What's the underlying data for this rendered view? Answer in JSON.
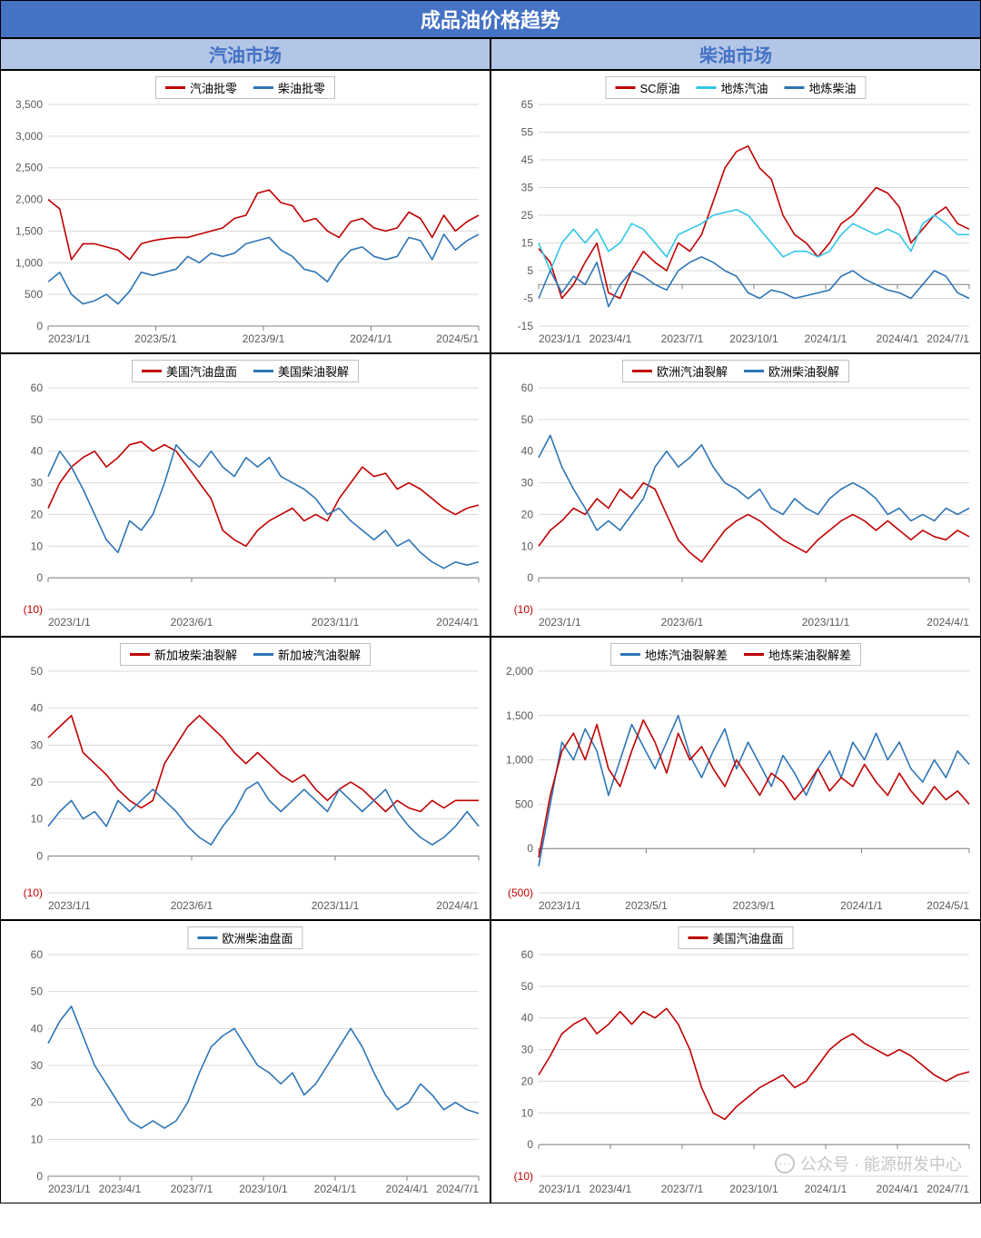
{
  "title": "成品油价格趋势",
  "sub_headers": [
    "汽油市场",
    "柴油市场"
  ],
  "watermark": "公众号 · 能源研发中心",
  "colors": {
    "red": "#c00000",
    "blue": "#2e75b6",
    "cyan": "#31c5e8",
    "grid": "#d9d9d9",
    "axis": "#808080",
    "text": "#595959",
    "neg": "#c00000"
  },
  "line_width": 1.6,
  "charts": [
    {
      "id": "c1",
      "legend": [
        {
          "label": "汽油批零",
          "color": "#c00000"
        },
        {
          "label": "柴油批零",
          "color": "#2e75b6"
        }
      ],
      "y": {
        "min": 0,
        "max": 3500,
        "step": 500,
        "neg_format": false
      },
      "x_labels": [
        "2023/1/1",
        "2023/5/1",
        "2023/9/1",
        "2024/1/1",
        "2024/5/1"
      ],
      "series": [
        {
          "color": "#c00000",
          "data": [
            2000,
            1850,
            1050,
            1300,
            1300,
            1250,
            1200,
            1050,
            1300,
            1350,
            1380,
            1400,
            1400,
            1450,
            1500,
            1550,
            1700,
            1750,
            2100,
            2150,
            1950,
            1900,
            1650,
            1700,
            1500,
            1400,
            1650,
            1700,
            1550,
            1500,
            1550,
            1800,
            1700,
            1400,
            1750,
            1500,
            1650,
            1750
          ]
        },
        {
          "color": "#2e75b6",
          "data": [
            700,
            850,
            500,
            350,
            400,
            500,
            350,
            550,
            850,
            800,
            850,
            900,
            1100,
            1000,
            1150,
            1100,
            1150,
            1300,
            1350,
            1400,
            1200,
            1100,
            900,
            850,
            700,
            1000,
            1200,
            1250,
            1100,
            1050,
            1100,
            1400,
            1350,
            1050,
            1450,
            1200,
            1350,
            1450
          ]
        }
      ]
    },
    {
      "id": "c2",
      "legend": [
        {
          "label": "SC原油",
          "color": "#c00000"
        },
        {
          "label": "地炼汽油",
          "color": "#31c5e8"
        },
        {
          "label": "地炼柴油",
          "color": "#2e75b6"
        }
      ],
      "y": {
        "min": -15,
        "max": 65,
        "step": 10,
        "neg_format": false
      },
      "x_labels": [
        "2023/1/1",
        "2023/4/1",
        "2023/7/1",
        "2023/10/1",
        "2024/1/1",
        "2024/4/1",
        "2024/7/1"
      ],
      "series": [
        {
          "color": "#c00000",
          "data": [
            13,
            8,
            -5,
            0,
            8,
            15,
            -3,
            -5,
            5,
            12,
            8,
            5,
            15,
            12,
            18,
            30,
            42,
            48,
            50,
            42,
            38,
            25,
            18,
            15,
            10,
            15,
            22,
            25,
            30,
            35,
            33,
            28,
            15,
            20,
            25,
            28,
            22,
            20
          ]
        },
        {
          "color": "#31c5e8",
          "data": [
            15,
            5,
            15,
            20,
            15,
            20,
            12,
            15,
            22,
            20,
            15,
            10,
            18,
            20,
            22,
            25,
            26,
            27,
            25,
            20,
            15,
            10,
            12,
            12,
            10,
            12,
            18,
            22,
            20,
            18,
            20,
            18,
            12,
            22,
            25,
            22,
            18,
            18
          ]
        },
        {
          "color": "#2e75b6",
          "data": [
            -5,
            5,
            -3,
            3,
            0,
            8,
            -8,
            0,
            5,
            3,
            0,
            -2,
            5,
            8,
            10,
            8,
            5,
            3,
            -3,
            -5,
            -2,
            -3,
            -5,
            -4,
            -3,
            -2,
            3,
            5,
            2,
            0,
            -2,
            -3,
            -5,
            0,
            5,
            3,
            -3,
            -5
          ]
        }
      ]
    },
    {
      "id": "c3",
      "legend": [
        {
          "label": "美国汽油盘面",
          "color": "#c00000"
        },
        {
          "label": "美国柴油裂解",
          "color": "#2e75b6"
        }
      ],
      "y": {
        "min": -10,
        "max": 60,
        "step": 10,
        "neg_format": true
      },
      "x_labels": [
        "2023/1/1",
        "2023/6/1",
        "2023/11/1",
        "2024/4/1"
      ],
      "series": [
        {
          "color": "#c00000",
          "data": [
            22,
            30,
            35,
            38,
            40,
            35,
            38,
            42,
            43,
            40,
            42,
            40,
            35,
            30,
            25,
            15,
            12,
            10,
            15,
            18,
            20,
            22,
            18,
            20,
            18,
            25,
            30,
            35,
            32,
            33,
            28,
            30,
            28,
            25,
            22,
            20,
            22,
            23
          ]
        },
        {
          "color": "#2e75b6",
          "data": [
            32,
            40,
            35,
            28,
            20,
            12,
            8,
            18,
            15,
            20,
            30,
            42,
            38,
            35,
            40,
            35,
            32,
            38,
            35,
            38,
            32,
            30,
            28,
            25,
            20,
            22,
            18,
            15,
            12,
            15,
            10,
            12,
            8,
            5,
            3,
            5,
            4,
            5
          ]
        }
      ]
    },
    {
      "id": "c4",
      "legend": [
        {
          "label": "欧洲汽油裂解",
          "color": "#c00000"
        },
        {
          "label": "欧洲柴油裂解",
          "color": "#2e75b6"
        }
      ],
      "y": {
        "min": -10,
        "max": 60,
        "step": 10,
        "neg_format": true
      },
      "x_labels": [
        "2023/1/1",
        "2023/6/1",
        "2023/11/1",
        "2024/4/1"
      ],
      "series": [
        {
          "color": "#c00000",
          "data": [
            10,
            15,
            18,
            22,
            20,
            25,
            22,
            28,
            25,
            30,
            28,
            20,
            12,
            8,
            5,
            10,
            15,
            18,
            20,
            18,
            15,
            12,
            10,
            8,
            12,
            15,
            18,
            20,
            18,
            15,
            18,
            15,
            12,
            15,
            13,
            12,
            15,
            13
          ]
        },
        {
          "color": "#2e75b6",
          "data": [
            38,
            45,
            35,
            28,
            22,
            15,
            18,
            15,
            20,
            25,
            35,
            40,
            35,
            38,
            42,
            35,
            30,
            28,
            25,
            28,
            22,
            20,
            25,
            22,
            20,
            25,
            28,
            30,
            28,
            25,
            20,
            22,
            18,
            20,
            18,
            22,
            20,
            22
          ]
        }
      ]
    },
    {
      "id": "c5",
      "legend": [
        {
          "label": "新加坡柴油裂解",
          "color": "#c00000"
        },
        {
          "label": "新加坡汽油裂解",
          "color": "#2e75b6"
        }
      ],
      "y": {
        "min": -10,
        "max": 50,
        "step": 10,
        "neg_format": true
      },
      "x_labels": [
        "2023/1/1",
        "2023/6/1",
        "2023/11/1",
        "2024/4/1"
      ],
      "series": [
        {
          "color": "#c00000",
          "data": [
            32,
            35,
            38,
            28,
            25,
            22,
            18,
            15,
            13,
            15,
            25,
            30,
            35,
            38,
            35,
            32,
            28,
            25,
            28,
            25,
            22,
            20,
            22,
            18,
            15,
            18,
            20,
            18,
            15,
            12,
            15,
            13,
            12,
            15,
            13,
            15,
            15,
            15
          ]
        },
        {
          "color": "#2e75b6",
          "data": [
            8,
            12,
            15,
            10,
            12,
            8,
            15,
            12,
            15,
            18,
            15,
            12,
            8,
            5,
            3,
            8,
            12,
            18,
            20,
            15,
            12,
            15,
            18,
            15,
            12,
            18,
            15,
            12,
            15,
            18,
            12,
            8,
            5,
            3,
            5,
            8,
            12,
            8
          ]
        }
      ]
    },
    {
      "id": "c6",
      "legend": [
        {
          "label": "地炼汽油裂解差",
          "color": "#2e75b6"
        },
        {
          "label": "地炼柴油裂解差",
          "color": "#c00000"
        }
      ],
      "y": {
        "min": -500,
        "max": 2000,
        "step": 500,
        "neg_format": true
      },
      "x_labels": [
        "2023/1/1",
        "2023/5/1",
        "2023/9/1",
        "2024/1/1",
        "2024/5/1"
      ],
      "series": [
        {
          "color": "#2e75b6",
          "data": [
            -200,
            500,
            1200,
            1000,
            1350,
            1100,
            600,
            1000,
            1400,
            1150,
            900,
            1200,
            1500,
            1050,
            800,
            1100,
            1350,
            900,
            1200,
            950,
            700,
            1050,
            850,
            600,
            900,
            1100,
            800,
            1200,
            1000,
            1300,
            1000,
            1200,
            900,
            750,
            1000,
            800,
            1100,
            950
          ]
        },
        {
          "color": "#c00000",
          "data": [
            -100,
            600,
            1100,
            1300,
            1000,
            1400,
            900,
            700,
            1100,
            1450,
            1200,
            850,
            1300,
            1000,
            1150,
            900,
            700,
            1000,
            800,
            600,
            850,
            750,
            550,
            700,
            900,
            650,
            800,
            700,
            950,
            750,
            600,
            850,
            650,
            500,
            700,
            550,
            650,
            500
          ]
        }
      ]
    },
    {
      "id": "c7",
      "legend": [
        {
          "label": "欧洲柴油盘面",
          "color": "#2e75b6"
        }
      ],
      "y": {
        "min": 0,
        "max": 60,
        "step": 10,
        "neg_format": false
      },
      "x_labels": [
        "2023/1/1",
        "2023/4/1",
        "2023/7/1",
        "2023/10/1",
        "2024/1/1",
        "2024/4/1",
        "2024/7/1"
      ],
      "series": [
        {
          "color": "#2e75b6",
          "data": [
            36,
            42,
            46,
            38,
            30,
            25,
            20,
            15,
            13,
            15,
            13,
            15,
            20,
            28,
            35,
            38,
            40,
            35,
            30,
            28,
            25,
            28,
            22,
            25,
            30,
            35,
            40,
            35,
            28,
            22,
            18,
            20,
            25,
            22,
            18,
            20,
            18,
            17
          ]
        }
      ]
    },
    {
      "id": "c8",
      "legend": [
        {
          "label": "美国汽油盘面",
          "color": "#c00000"
        }
      ],
      "y": {
        "min": -10,
        "max": 60,
        "step": 10,
        "neg_format": true
      },
      "x_labels": [
        "2023/1/1",
        "2023/4/1",
        "2023/7/1",
        "2023/10/1",
        "2024/1/1",
        "2024/4/1",
        "2024/7/1"
      ],
      "series": [
        {
          "color": "#c00000",
          "data": [
            22,
            28,
            35,
            38,
            40,
            35,
            38,
            42,
            38,
            42,
            40,
            43,
            38,
            30,
            18,
            10,
            8,
            12,
            15,
            18,
            20,
            22,
            18,
            20,
            25,
            30,
            33,
            35,
            32,
            30,
            28,
            30,
            28,
            25,
            22,
            20,
            22,
            23
          ]
        }
      ],
      "watermark": true
    }
  ]
}
